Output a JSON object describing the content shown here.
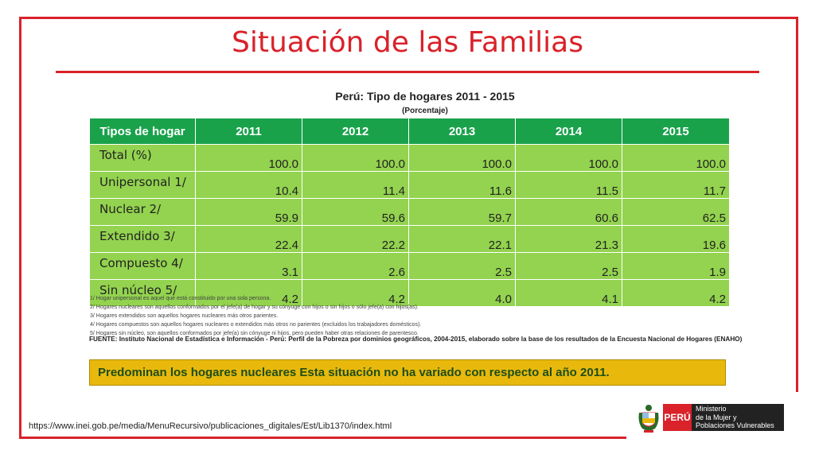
{
  "title": "Situación de las Familias",
  "table_title": "Perú: Tipo de hogares 2011 - 2015",
  "table_subtitle": "(Porcentaje)",
  "table": {
    "headers": [
      "Tipos de hogar",
      "2011",
      "2012",
      "2013",
      "2014",
      "2015"
    ],
    "rows": [
      {
        "label": "Total (%)",
        "values": [
          "100.0",
          "100.0",
          "100.0",
          "100.0",
          "100.0"
        ]
      },
      {
        "label": "Unipersonal 1/",
        "values": [
          "10.4",
          "11.4",
          "11.6",
          "11.5",
          "11.7"
        ]
      },
      {
        "label": "Nuclear 2/",
        "values": [
          "59.9",
          "59.6",
          "59.7",
          "60.6",
          "62.5"
        ]
      },
      {
        "label": "Extendido 3/",
        "values": [
          "22.4",
          "22.2",
          "22.1",
          "21.3",
          "19.6"
        ]
      },
      {
        "label": "Compuesto 4/",
        "values": [
          "3.1",
          "2.6",
          "2.5",
          "2.5",
          "1.9"
        ]
      },
      {
        "label": "Sin núcleo 5/",
        "values": [
          "4.2",
          "4.2",
          "4.0",
          "4.1",
          "4.2"
        ]
      }
    ]
  },
  "notes": [
    "1/ Hogar unipersonal es aquel que está constituido por una sola persona.",
    "2/ Hogares nucleares son aquellos conformados por el jefe(a) de hogar y su cónyuge con hijos o sin hijos o sólo jefe(a) con hijos(as).",
    "3/ Hogares extendidos son aquellos hogares nucleares más otros parientes.",
    "4/ Hogares compuestos son aquellos hogares nucleares o extendidos más otros no parientes (excluidos los trabajadores domésticos).",
    "5/ Hogares sin núcleo, son aquellos conformados por jefe(a) sin cónyuge ni hijos, pero pueden haber otras relaciones de parentesco."
  ],
  "source": "FUENTE: Instituto Nacional de Estadística e Información - Perú: Perfil de la Pobreza por dominios geográficos, 2004-2015, elaborado sobre la base de los resultados de la Encuesta Nacional de Hogares (ENAHO)",
  "callout": "Predominan los hogares nucleares Esta situación no ha variado con respecto al año 2011.",
  "url": "https://www.inei.gob.pe/media/MenuRecursivo/publicaciones_digitales/Est/Lib1370/index.html",
  "logo": {
    "country": "PERÚ",
    "ministry_line1": "Ministerio",
    "ministry_line2": "de la Mujer y",
    "ministry_line3": "Poblaciones Vulnerables"
  },
  "colors": {
    "accent": "#d9222a",
    "header_green": "#1aa24b",
    "cell_green": "#93d34f",
    "callout": "#e8b90c"
  }
}
